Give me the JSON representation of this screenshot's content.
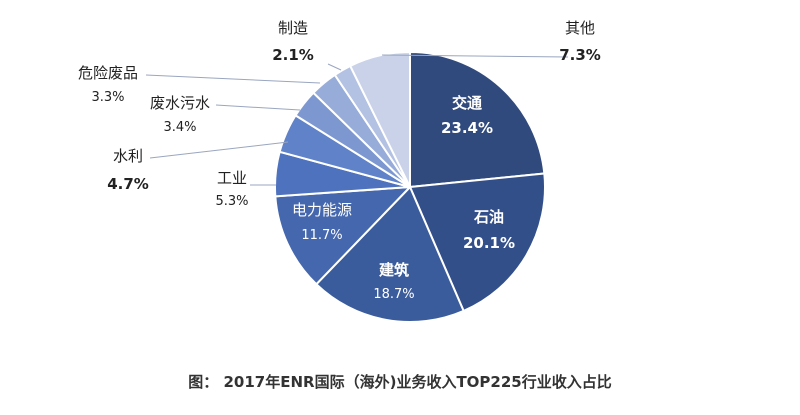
{
  "chart_data": {
    "type": "pie",
    "caption": "图： 2017年ENR国际（海外)业务收入TOP225行业收入占比",
    "slices": [
      {
        "label": "交通",
        "value": 23.4,
        "value_text": "23.4%",
        "color": "#314a7d"
      },
      {
        "label": "石油",
        "value": 20.1,
        "value_text": "20.1%",
        "color": "#334f8a"
      },
      {
        "label": "建筑",
        "value": 18.7,
        "value_text": "18.7%",
        "color": "#3b5c9c"
      },
      {
        "label": "电力能源",
        "value": 11.7,
        "value_text": "11.7%",
        "color": "#4567ad"
      },
      {
        "label": "工业",
        "value": 5.3,
        "value_text": "5.3%",
        "color": "#4e72be"
      },
      {
        "label": "水利",
        "value": 4.7,
        "value_text": "4.7%",
        "color": "#5f82c8"
      },
      {
        "label": "废水污水",
        "value": 3.4,
        "value_text": "3.4%",
        "color": "#7d98d1"
      },
      {
        "label": "危险废品",
        "value": 3.3,
        "value_text": "3.3%",
        "color": "#98acd9"
      },
      {
        "label": "制造",
        "value": 2.1,
        "value_text": "2.1%",
        "color": "#b3c1e2"
      },
      {
        "label": "其他",
        "value": 7.3,
        "value_text": "7.3%",
        "color": "#c9d2e8"
      }
    ]
  }
}
